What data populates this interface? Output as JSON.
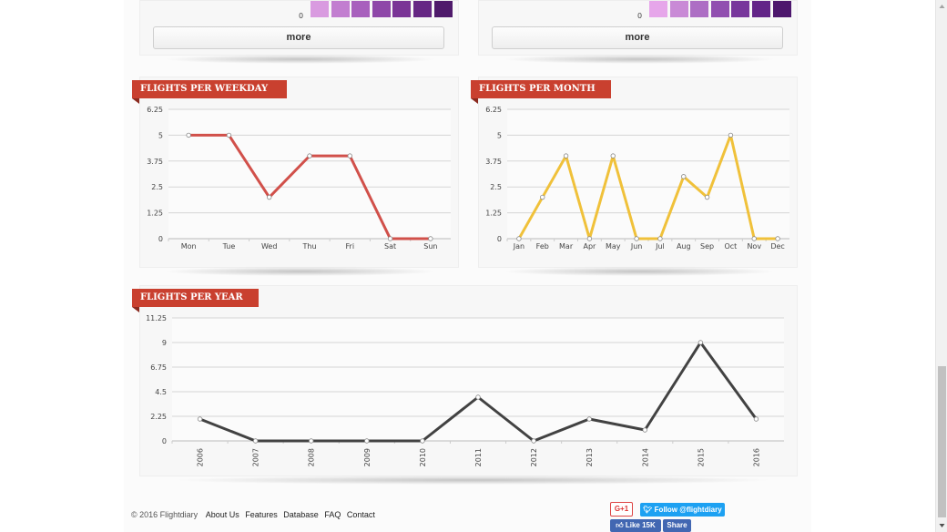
{
  "top_panels": {
    "left_more": "more",
    "right_more": "more",
    "left_zero": "0",
    "right_zero": "0",
    "left_colors": [
      "#d99be0",
      "#c27ed0",
      "#a860bd",
      "#8e47a8",
      "#7a3496",
      "#662784",
      "#4f1a6b"
    ],
    "right_colors": [
      "#e6a6ea",
      "#c98ad6",
      "#ad6ec4",
      "#914fb0",
      "#78379c",
      "#632588",
      "#4d176d"
    ]
  },
  "charts": {
    "weekday": {
      "title": "FLIGHTS PER WEEKDAY",
      "color": "#d1504a"
    },
    "month": {
      "title": "FLIGHTS PER MONTH",
      "color": "#f0c13a"
    },
    "year": {
      "title": "FLIGHTS PER YEAR",
      "color": "#424242"
    }
  },
  "chart_data": [
    {
      "type": "line",
      "title": "FLIGHTS PER WEEKDAY",
      "categories": [
        "Mon",
        "Tue",
        "Wed",
        "Thu",
        "Fri",
        "Sat",
        "Sun"
      ],
      "values": [
        5,
        5,
        2,
        4,
        4,
        0,
        0
      ],
      "yticks": [
        "6.25",
        "5",
        "3.75",
        "2.5",
        "1.25",
        "0"
      ],
      "ylim": [
        0,
        6.25
      ]
    },
    {
      "type": "line",
      "title": "FLIGHTS PER MONTH",
      "categories": [
        "Jan",
        "Feb",
        "Mar",
        "Apr",
        "May",
        "Jun",
        "Jul",
        "Aug",
        "Sep",
        "Oct",
        "Nov",
        "Dec"
      ],
      "values": [
        0,
        2,
        4,
        0,
        4,
        0,
        0,
        3,
        2,
        5,
        0,
        0
      ],
      "yticks": [
        "6.25",
        "5",
        "3.75",
        "2.5",
        "1.25",
        "0"
      ],
      "ylim": [
        0,
        6.25
      ]
    },
    {
      "type": "line",
      "title": "FLIGHTS PER YEAR",
      "categories": [
        "2006",
        "2007",
        "2008",
        "2009",
        "2010",
        "2011",
        "2012",
        "2013",
        "2014",
        "2015",
        "2016"
      ],
      "values": [
        2,
        0,
        0,
        0,
        0,
        4,
        0,
        2,
        1,
        9,
        2
      ],
      "yticks": [
        "11.25",
        "9",
        "6.75",
        "4.5",
        "2.25",
        "0"
      ],
      "ylim": [
        0,
        11.25
      ]
    }
  ],
  "footer": {
    "copyright": "© 2016 Flightdiary",
    "links": [
      "About Us",
      "Features",
      "Database",
      "FAQ",
      "Contact"
    ]
  },
  "social": {
    "gplus": "G+1",
    "twitter": "Follow @flightdiary",
    "fb_like": "Like 15K",
    "fb_share": "Share"
  }
}
